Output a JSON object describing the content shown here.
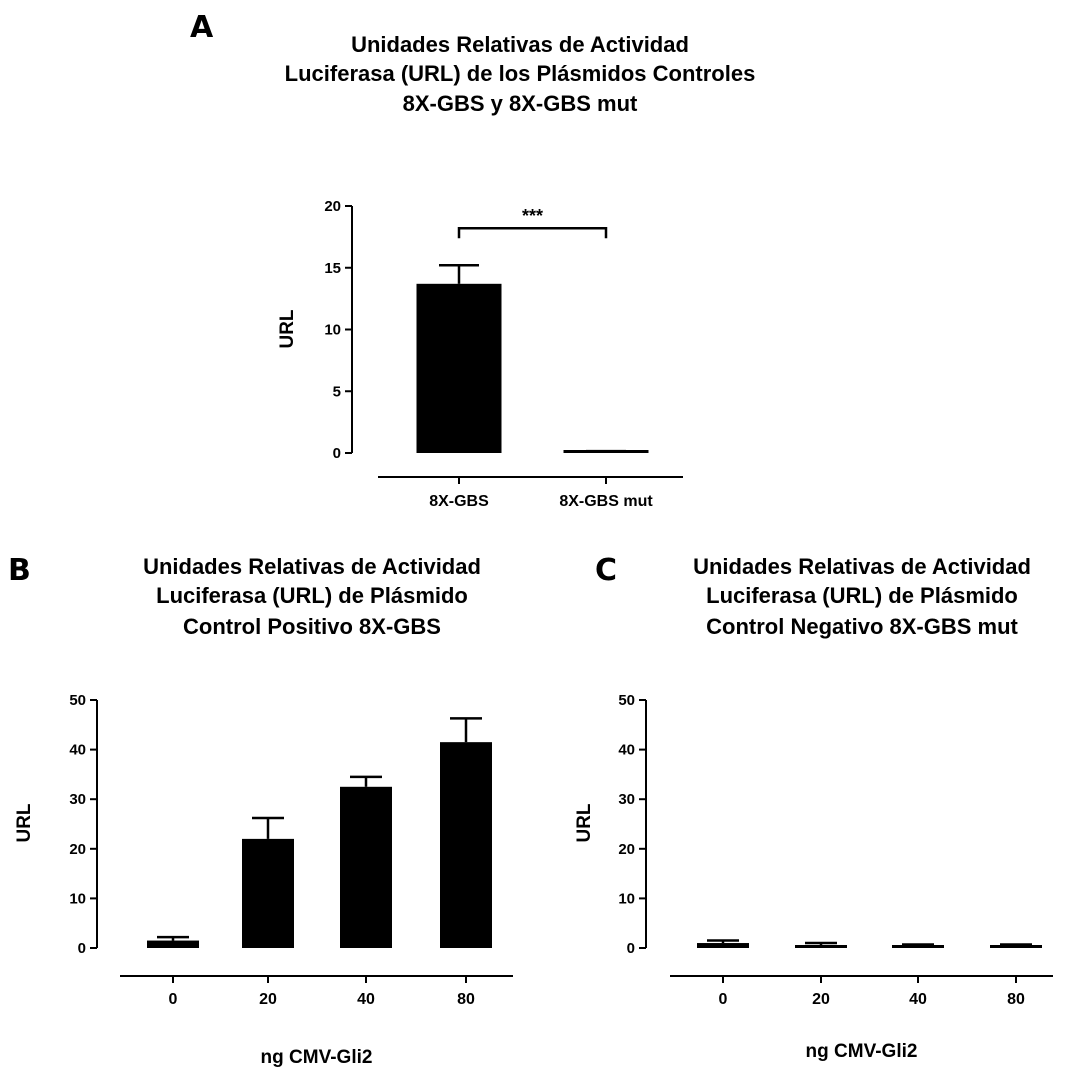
{
  "chart_data": [
    {
      "panel": "A",
      "type": "bar",
      "title": [
        "Unidades Relativas de Actividad",
        "Luciferasa (URL) de los Plásmidos Controles",
        "8X-GBS y 8X-GBS mut"
      ],
      "xlabel": "",
      "ylabel": "URL",
      "ylim": [
        0,
        20
      ],
      "yticks": [
        0,
        5,
        10,
        15,
        20
      ],
      "categories": [
        "8X-GBS",
        "8X-GBS mut"
      ],
      "values": [
        13.7,
        0.1
      ],
      "errors": [
        1.5,
        0.05
      ],
      "significance": {
        "between": [
          0,
          1
        ],
        "label": "***"
      },
      "grid": false,
      "color": "#000000"
    },
    {
      "panel": "B",
      "type": "bar",
      "title": [
        "Unidades Relativas de Actividad",
        "Luciferasa (URL) de Plásmido",
        "Control Positivo 8X-GBS"
      ],
      "xlabel": "ng CMV-Gli2",
      "ylabel": "URL",
      "ylim": [
        0,
        50
      ],
      "yticks": [
        0,
        10,
        20,
        30,
        40,
        50
      ],
      "categories": [
        "0",
        "20",
        "40",
        "80"
      ],
      "values": [
        1.5,
        22,
        32.5,
        41.5
      ],
      "errors": [
        0.7,
        4.2,
        2.0,
        4.8
      ],
      "grid": false,
      "color": "#000000"
    },
    {
      "panel": "C",
      "type": "bar",
      "title": [
        "Unidades Relativas de Actividad",
        "Luciferasa (URL) de Plásmido",
        "Control Negativo 8X-GBS mut"
      ],
      "xlabel": "ng CMV-Gli2",
      "ylabel": "URL",
      "ylim": [
        0,
        50
      ],
      "yticks": [
        0,
        10,
        20,
        30,
        40,
        50
      ],
      "categories": [
        "0",
        "20",
        "40",
        "80"
      ],
      "values": [
        1.0,
        0.6,
        0.4,
        0.4
      ],
      "errors": [
        0.5,
        0.4,
        0.3,
        0.3
      ],
      "grid": false,
      "color": "#000000"
    }
  ]
}
